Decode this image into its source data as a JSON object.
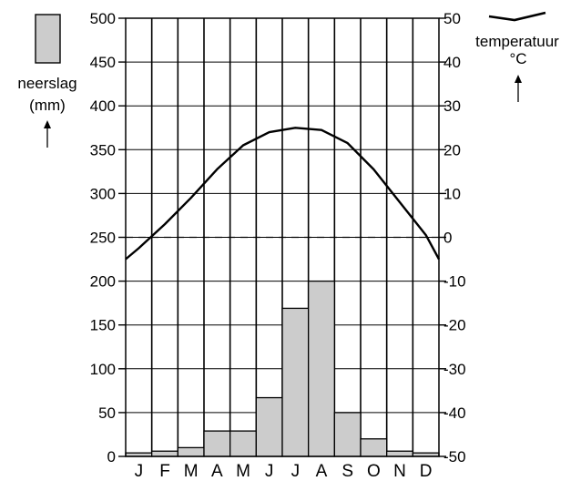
{
  "chart_data": {
    "type": "bar+line",
    "title": "",
    "categories": [
      "J",
      "F",
      "M",
      "A",
      "M",
      "J",
      "J",
      "A",
      "S",
      "O",
      "N",
      "D"
    ],
    "series": [
      {
        "name": "neerslag",
        "type": "bar",
        "axis": "left",
        "color": "#cccccc",
        "values": [
          4,
          6,
          10,
          29,
          29,
          67,
          169,
          200,
          50,
          20,
          6,
          4
        ]
      },
      {
        "name": "temperatuur",
        "type": "line",
        "axis": "right",
        "color": "#000000",
        "values": [
          -2.5,
          3,
          9,
          15.5,
          21,
          24,
          25,
          24.5,
          21.5,
          15.5,
          8,
          0.5
        ],
        "edge_values": [
          -5,
          -5
        ]
      }
    ],
    "y_left": {
      "label": "neerslag (mm)",
      "label_lines": [
        "neerslag",
        "(mm)"
      ],
      "range": [
        0,
        500
      ],
      "ticks": [
        0,
        50,
        100,
        150,
        200,
        250,
        300,
        350,
        400,
        450,
        500
      ]
    },
    "y_right": {
      "label": "temperatuur °C",
      "label_lines": [
        "temperatuur",
        "°C"
      ],
      "range": [
        -50,
        50
      ],
      "ticks": [
        -50,
        -40,
        -30,
        -20,
        -10,
        0,
        10,
        20,
        30,
        40,
        50
      ]
    },
    "reference_line": {
      "axis": "right",
      "value": 0,
      "style": "dashed"
    },
    "grid": {
      "horizontal": true,
      "vertical": true
    },
    "legend": {
      "precipitation_position": "top-left",
      "temperature_position": "top-right"
    }
  }
}
